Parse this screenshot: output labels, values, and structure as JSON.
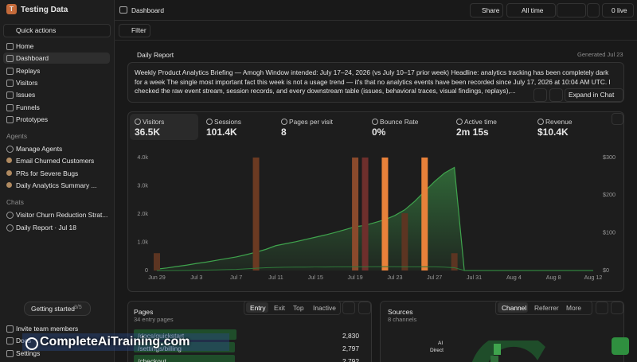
{
  "sidebar": {
    "workspace": "Testing Data",
    "avatar": "T",
    "quick_actions": "Quick actions",
    "nav": [
      "Home",
      "Dashboard",
      "Replays",
      "Visitors",
      "Issues",
      "Funnels",
      "Prototypes"
    ],
    "agents_heading": "Agents",
    "agents": [
      "Manage Agents",
      "Email Churned Customers",
      "PRs for Severe Bugs",
      "Daily Analytics Summary ..."
    ],
    "chats_heading": "Chats",
    "chats": [
      "Visitor Churn Reduction Strat...",
      "Daily Report · Jul 18"
    ],
    "getting_started": "Getting started",
    "progress": "3/5",
    "footer": [
      "Invite team members",
      "Docs",
      "Settings"
    ]
  },
  "topbar": {
    "title": "Dashboard",
    "share": "Share",
    "range": "All time",
    "live": "0 live",
    "filter": "Filter"
  },
  "report": {
    "title": "Daily Report",
    "generated": "Generated Jul 23",
    "text": "Weekly Product Analytics Briefing — Amogh Window intended: July 17–24, 2026 (vs July 10–17 prior week) Headline: analytics tracking has been completely dark for a week The single most important fact this week is not a usage trend — it's that no analytics events have been recorded since July 17, 2026 at 10:04 AM UTC. I checked the raw event stream, session records, and every downstream table (issues, behavioral traces, visual findings, replays),...",
    "expand": "Expand in Chat"
  },
  "stats": [
    {
      "label": "Visitors",
      "value": "36.5K"
    },
    {
      "label": "Sessions",
      "value": "101.4K"
    },
    {
      "label": "Pages per visit",
      "value": "8"
    },
    {
      "label": "Bounce Rate",
      "value": "0%"
    },
    {
      "label": "Active time",
      "value": "2m 15s"
    },
    {
      "label": "Revenue",
      "value": "$10.4K"
    }
  ],
  "chart_data": {
    "type": "combo",
    "categories": [
      "Jun 29",
      null,
      null,
      null,
      "Jul 3",
      null,
      null,
      null,
      "Jul 7",
      null,
      null,
      null,
      "Jul 11",
      null,
      null,
      null,
      "Jul 15",
      null,
      null,
      null,
      "Jul 19",
      null,
      null,
      null,
      "Jul 23",
      null,
      null,
      null,
      "Jul 27",
      null,
      null,
      null,
      "Jul 31",
      null,
      null,
      null,
      "Aug 4",
      null,
      null,
      null,
      "Aug 8",
      null,
      null,
      null,
      "Aug 12"
    ],
    "ylim": [
      0,
      4000
    ],
    "yticks": [
      0,
      {
        "value": 1000,
        "label": "1.0k"
      },
      {
        "value": 2000,
        "label": "2.0k"
      },
      {
        "value": 3000,
        "label": "3.0k"
      },
      {
        "value": 4000,
        "label": "4.0k"
      }
    ],
    "y2lim": [
      0,
      300
    ],
    "y2ticks": [
      {
        "value": 0,
        "label": "$0"
      },
      {
        "value": 100,
        "label": "$100"
      },
      {
        "value": 200,
        "label": "$200"
      },
      {
        "value": 300,
        "label": "$300"
      }
    ],
    "grid": false,
    "series": [
      {
        "type": "area",
        "color": "#3fa34d",
        "values": [
          50,
          90,
          140,
          190,
          250,
          300,
          360,
          420,
          480,
          560,
          650,
          750,
          880,
          950,
          1020,
          1100,
          1180,
          1260,
          1350,
          1450,
          1550,
          1600,
          1700,
          1800,
          1950,
          2150,
          2450,
          2800,
          3150,
          3450,
          3650,
          0,
          0,
          0,
          0,
          0,
          0,
          0,
          0,
          0,
          0,
          0,
          0,
          0,
          0
        ]
      },
      {
        "type": "line",
        "color": "#2e7a3a",
        "values": [
          0,
          0,
          0,
          5,
          10,
          15,
          20,
          30,
          40,
          60,
          80,
          100,
          110,
          115,
          120,
          120,
          125,
          125,
          130,
          130,
          130,
          130,
          135,
          135,
          135,
          130,
          130,
          130,
          130,
          120,
          100,
          0,
          0,
          0,
          0,
          0,
          0,
          0,
          0,
          0,
          0,
          0,
          0,
          0,
          0
        ]
      },
      {
        "type": "bar",
        "axis": "y2",
        "color": "#5c3522",
        "values": [
          46,
          0,
          0,
          0,
          0,
          0,
          0,
          0,
          0,
          0,
          300,
          0,
          0,
          0,
          0,
          0,
          0,
          0,
          0,
          0,
          300,
          300,
          0,
          300,
          0,
          152,
          0,
          300,
          0,
          0,
          46,
          0,
          0,
          0,
          0,
          0,
          0,
          0,
          0,
          0,
          0,
          0,
          0,
          0,
          0
        ],
        "colors": [
          "#5c3522",
          "#5c3522",
          "#5c3522",
          "#5c3522",
          "#5c3522",
          "#5c3522",
          "#5c3522",
          "#5c3522",
          "#5c3522",
          "#5c3522",
          "#6b3a22",
          "#5c3522",
          "#5c3522",
          "#5c3522",
          "#5c3522",
          "#5c3522",
          "#5c3522",
          "#5c3522",
          "#5c3522",
          "#5c3522",
          "#8a4a2c",
          "#6e2f2c",
          "#5c3522",
          "#e8813a",
          "#5c3522",
          "#5c3522",
          "#5c3522",
          "#e8813a",
          "#5c3522",
          "#5c3522",
          "#5c3522",
          "#5c3522",
          "#5c3522",
          "#5c3522",
          "#5c3522",
          "#5c3522",
          "#5c3522",
          "#5c3522",
          "#5c3522",
          "#5c3522",
          "#5c3522",
          "#5c3522",
          "#5c3522",
          "#5c3522",
          "#5c3522"
        ]
      }
    ]
  },
  "pages": {
    "title": "Pages",
    "subtitle": "34 entry pages",
    "tabs": [
      "Entry",
      "Exit",
      "Top",
      "Inactive"
    ],
    "rows": [
      {
        "path": "/docs/quickstart",
        "value": 2830,
        "label": "2,830"
      },
      {
        "path": "/settings/billing",
        "value": 2797,
        "label": "2,797"
      },
      {
        "path": "/checkout",
        "value": 2792,
        "label": "2,792"
      }
    ]
  },
  "sources": {
    "title": "Sources",
    "subtitle": "8 channels",
    "tabs": [
      "Channel",
      "Referrer",
      "More"
    ],
    "labels": [
      "AI",
      "Direct"
    ]
  },
  "watermark": "CompleteAiTraining.com"
}
